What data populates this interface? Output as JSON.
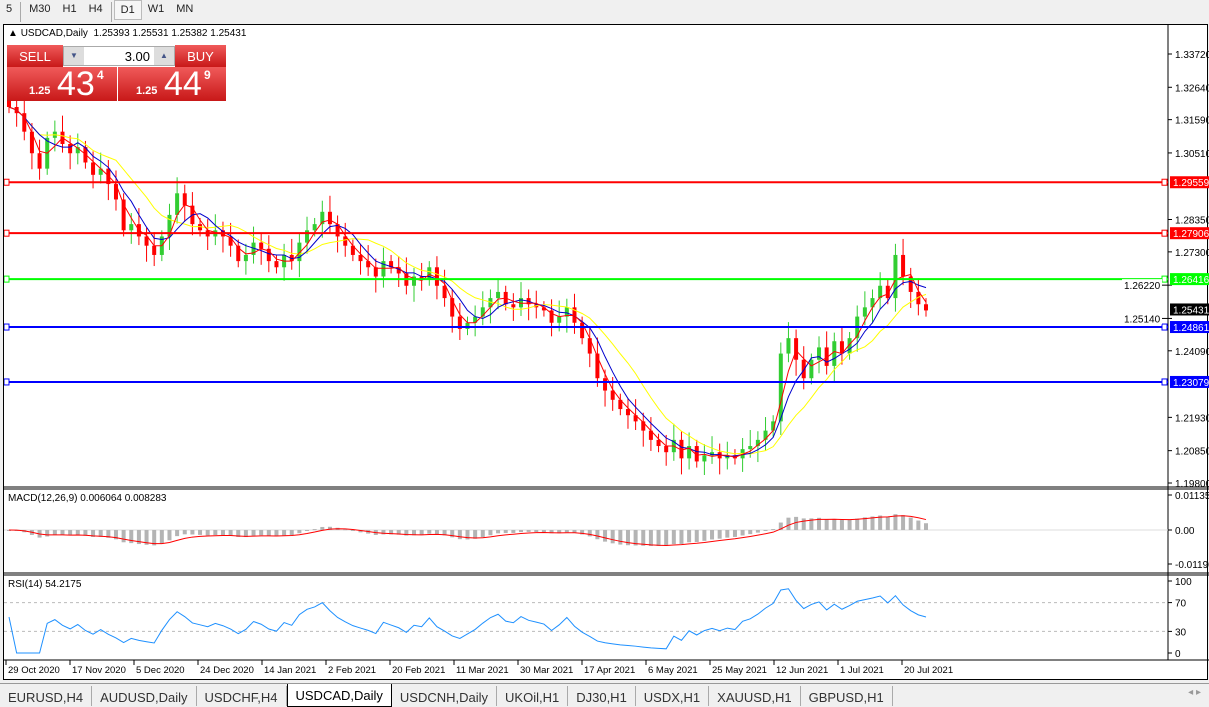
{
  "timeframes": [
    "5",
    "M30",
    "H1",
    "H4",
    "D1",
    "W1",
    "MN"
  ],
  "active_timeframe": "D1",
  "chart": {
    "symbol_title": "USDCAD,Daily",
    "ohlc": "1.25393 1.25531 1.25382 1.25431"
  },
  "trade_panel": {
    "sell_label": "SELL",
    "buy_label": "BUY",
    "lot": "3.00",
    "sell_prefix": "1.25",
    "sell_big": "43",
    "sell_sup": "4",
    "buy_prefix": "1.25",
    "buy_big": "44",
    "buy_sup": "9"
  },
  "price_axis": [
    "1.33720",
    "1.32640",
    "1.31590",
    "1.30510",
    "1.28350",
    "1.27300",
    "1.26220",
    "1.25140",
    "1.24090",
    "1.21930",
    "1.20850",
    "1.19800"
  ],
  "levels": [
    {
      "price": "1.29559",
      "color": "#ff0000"
    },
    {
      "price": "1.27906",
      "color": "#ff0000"
    },
    {
      "price": "1.26416",
      "color": "#00ff00"
    },
    {
      "price": "1.24861",
      "color": "#0000ff"
    },
    {
      "price": "1.23079",
      "color": "#0000ff"
    }
  ],
  "current_price": "1.25431",
  "macd": {
    "label": "MACD(12,26,9) 0.006064 0.008283",
    "axis": [
      "0.01135",
      "0.00",
      "-0.01190"
    ]
  },
  "rsi": {
    "label": "RSI(14) 54.2175",
    "axis": [
      "100",
      "70",
      "30",
      "0"
    ]
  },
  "dates": [
    "29 Oct 2020",
    "17 Nov 2020",
    "5 Dec 2020",
    "24 Dec 2020",
    "14 Jan 2021",
    "2 Feb 2021",
    "20 Feb 2021",
    "11 Mar 2021",
    "30 Mar 2021",
    "17 Apr 2021",
    "6 May 2021",
    "25 May 2021",
    "12 Jun 2021",
    "1 Jul 2021",
    "20 Jul 2021"
  ],
  "colors": {
    "bull": "#32cd32",
    "bear": "#ff0000",
    "ma_fast": "#ff0000",
    "ma_mid": "#0000cd",
    "ma_slow": "#ffff00"
  },
  "closes": [
    1.32,
    1.318,
    1.312,
    1.305,
    1.3,
    1.31,
    1.312,
    1.308,
    1.305,
    1.307,
    1.302,
    1.298,
    1.3,
    1.295,
    1.29,
    1.28,
    1.282,
    1.278,
    1.275,
    1.272,
    1.278,
    1.285,
    1.292,
    1.288,
    1.282,
    1.28,
    1.278,
    1.28,
    1.278,
    1.275,
    1.27,
    1.272,
    1.276,
    1.274,
    1.27,
    1.268,
    1.272,
    1.27,
    1.276,
    1.28,
    1.282,
    1.286,
    1.282,
    1.278,
    1.275,
    1.272,
    1.27,
    1.268,
    1.265,
    1.27,
    1.268,
    1.266,
    1.262,
    1.265,
    1.264,
    1.268,
    1.262,
    1.258,
    1.252,
    1.248,
    1.25,
    1.252,
    1.255,
    1.258,
    1.26,
    1.256,
    1.255,
    1.258,
    1.256,
    1.255,
    1.254,
    1.25,
    1.252,
    1.255,
    1.25,
    1.245,
    1.24,
    1.232,
    1.228,
    1.225,
    1.222,
    1.22,
    1.218,
    1.215,
    1.212,
    1.21,
    1.208,
    1.212,
    1.206,
    1.21,
    1.205,
    1.207,
    1.208,
    1.206,
    1.207,
    1.206,
    1.209,
    1.21,
    1.212,
    1.215,
    1.218,
    1.24,
    1.245,
    1.238,
    1.232,
    1.238,
    1.242,
    1.236,
    1.244,
    1.24,
    1.245,
    1.252,
    1.255,
    1.258,
    1.262,
    1.258,
    1.272,
    1.265,
    1.26,
    1.256,
    1.254
  ],
  "tabs": [
    "EURUSD,H4",
    "AUDUSD,Daily",
    "USDCHF,H4",
    "USDCAD,Daily",
    "USDCNH,Daily",
    "UKOil,H1",
    "DJ30,H1",
    "USDX,H1",
    "XAUUSD,H1",
    "GBPUSD,H1"
  ],
  "active_tab": "USDCAD,Daily"
}
